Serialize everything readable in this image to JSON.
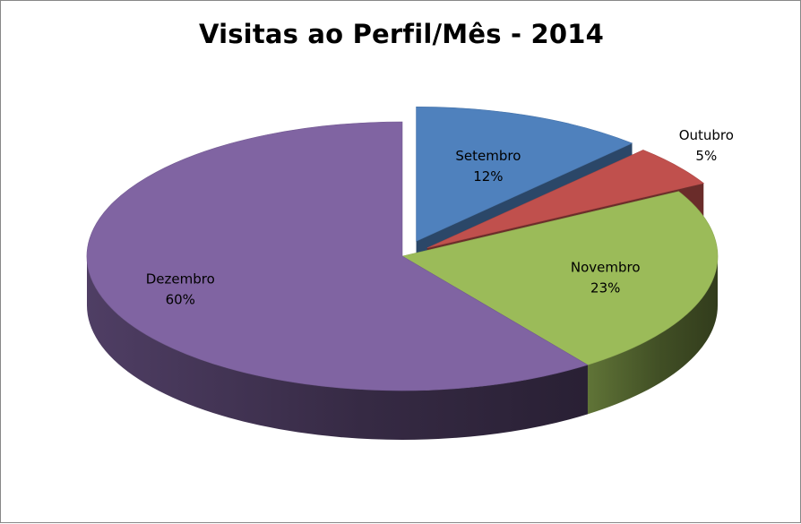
{
  "chart_data": {
    "type": "pie",
    "title": "Visitas ao Perfil/Mês - 2014",
    "slices": [
      {
        "name": "Setembro",
        "value": 12,
        "label": "12%",
        "color": "#4F81BD"
      },
      {
        "name": "Outubro",
        "value": 5,
        "label": "5%",
        "color": "#C0504D"
      },
      {
        "name": "Novembro",
        "value": 23,
        "label": "23%",
        "color": "#9BBB59"
      },
      {
        "name": "Dezembro",
        "value": 60,
        "label": "60%",
        "color": "#8064A2"
      }
    ],
    "style": "3d-exploded",
    "legend": "none"
  }
}
